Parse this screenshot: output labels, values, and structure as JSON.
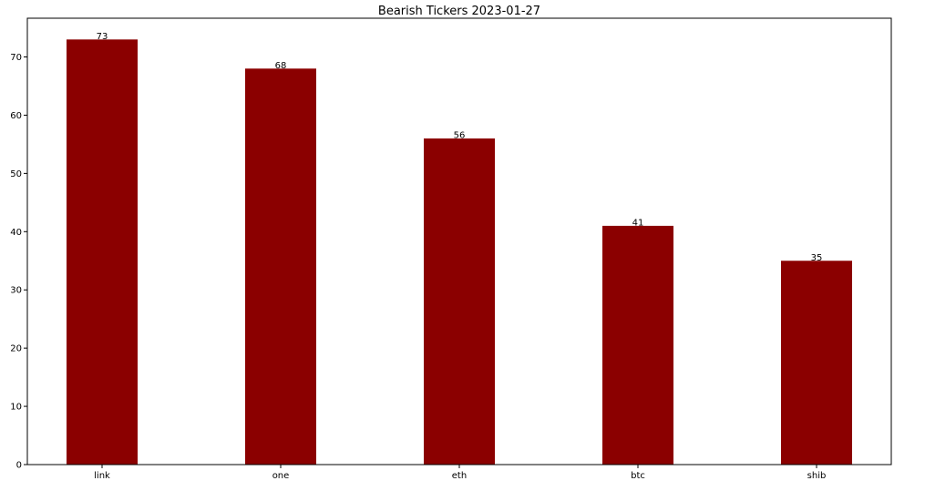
{
  "chart_data": {
    "type": "bar",
    "title": "Bearish Tickers 2023-01-27",
    "xlabel": "",
    "ylabel": "",
    "categories": [
      "link",
      "one",
      "eth",
      "btc",
      "shib"
    ],
    "values": [
      73,
      68,
      56,
      41,
      35
    ],
    "data_labels": [
      "73",
      "68",
      "56",
      "41",
      "35"
    ],
    "ylim": [
      0,
      76.65
    ],
    "yticks": [
      0,
      10,
      20,
      30,
      40,
      50,
      60,
      70
    ],
    "ytick_labels": [
      "0",
      "10",
      "20",
      "30",
      "40",
      "50",
      "60",
      "70"
    ],
    "grid": false,
    "legend": "none",
    "colors": {
      "bar": "#8b0000",
      "axis": "#000000",
      "text": "#000000",
      "background": "#ffffff"
    }
  }
}
